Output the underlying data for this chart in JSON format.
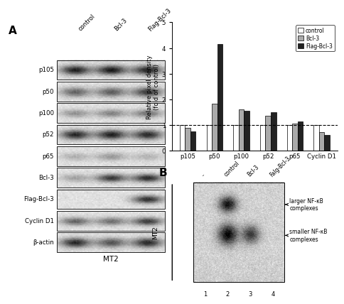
{
  "panel_A_label": "A",
  "panel_B_label": "B",
  "wb_rows": [
    "p105",
    "p50",
    "p100",
    "p52",
    "p65",
    "Bcl-3",
    "Flag-Bcl-3",
    "Cyclin D1",
    "β-actin"
  ],
  "wb_col_labels": [
    "control",
    "Bcl-3",
    "Flag-Bcl-3"
  ],
  "wb_cell_label": "MT2",
  "bar_categories": [
    "p105",
    "p50",
    "p100",
    "p52",
    "p65",
    "Cyclin D1"
  ],
  "bar_control": [
    1.0,
    1.0,
    1.0,
    1.0,
    1.0,
    1.0
  ],
  "bar_bcl3": [
    0.9,
    1.82,
    1.6,
    1.35,
    1.05,
    0.72
  ],
  "bar_flagbcl3": [
    0.75,
    4.15,
    1.55,
    1.5,
    1.15,
    0.62
  ],
  "bar_colors": [
    "white",
    "#aaaaaa",
    "#222222"
  ],
  "bar_edge_color": "black",
  "ylabel": "Relative pixel density\n(fold of control)",
  "ylim": [
    0,
    5
  ],
  "yticks": [
    0,
    1,
    2,
    3,
    4,
    5
  ],
  "legend_labels": [
    "control",
    "Bcl-3",
    "Flag-Bcl-3"
  ],
  "dashed_line_y": 1.0,
  "gel_label": "MT2",
  "gel_lane_labels": [
    "-",
    "control",
    "Bcl-3",
    "Falg-Bcl-3"
  ],
  "gel_lane_numbers": [
    "1",
    "2",
    "3",
    "4"
  ],
  "gel_annotation_larger": "larger NF-κB\ncomplexes",
  "gel_annotation_smaller": "smaller NF-κB\ncomplexes",
  "background_color": "white",
  "wb_band_data": [
    {
      "label": "p105",
      "bands": [
        0.85,
        0.88,
        0.82
      ],
      "thick": true
    },
    {
      "label": "p50",
      "bands": [
        0.55,
        0.58,
        0.72
      ],
      "thick": true
    },
    {
      "label": "p100",
      "bands": [
        0.35,
        0.42,
        0.48
      ],
      "thick": false
    },
    {
      "label": "p52",
      "bands": [
        0.82,
        0.85,
        0.8
      ],
      "thick": true
    },
    {
      "label": "p65",
      "bands": [
        0.22,
        0.32,
        0.2
      ],
      "thick": false
    },
    {
      "label": "Bcl-3",
      "bands": [
        0.28,
        0.75,
        0.8
      ],
      "thick": false
    },
    {
      "label": "Flag-Bcl-3",
      "bands": [
        0.0,
        0.0,
        0.78
      ],
      "thick": false
    },
    {
      "label": "Cyclin D1",
      "bands": [
        0.55,
        0.5,
        0.72
      ],
      "thick": false
    },
    {
      "label": "β-actin",
      "bands": [
        0.82,
        0.62,
        0.8
      ],
      "thick": true
    }
  ]
}
